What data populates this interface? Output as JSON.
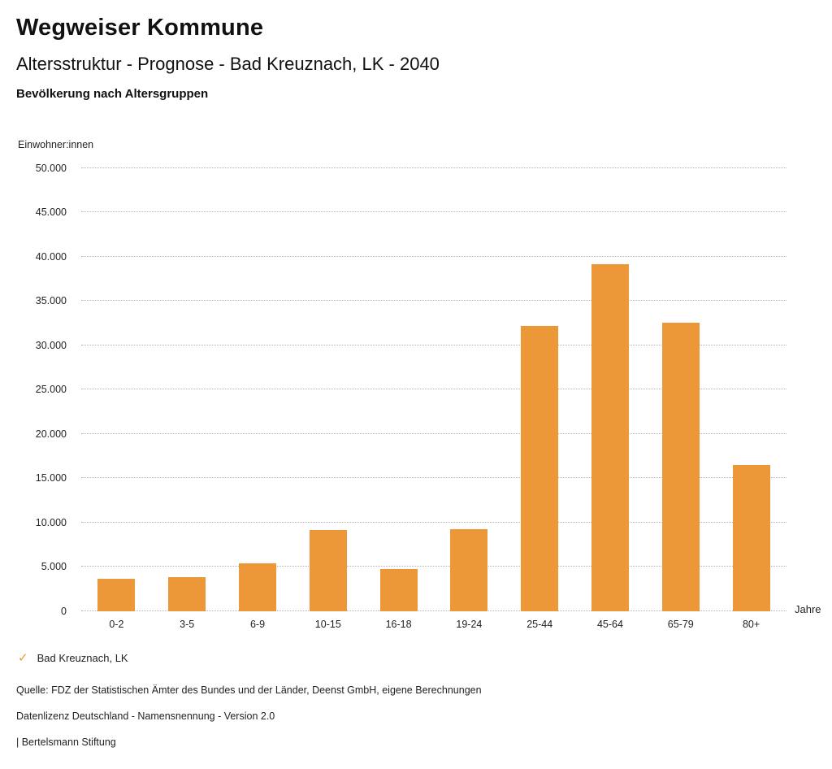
{
  "header": {
    "title": "Wegweiser Kommune",
    "subtitle": "Altersstruktur - Prognose - Bad Kreuznach, LK - 2040",
    "chart_title": "Bevölkerung nach Altersgruppen"
  },
  "chart_data": {
    "type": "bar",
    "title": "Bevölkerung nach Altersgruppen",
    "ylabel": "Einwohner:innen",
    "xlabel": "Jahre",
    "categories": [
      "0-2",
      "3-5",
      "6-9",
      "10-15",
      "16-18",
      "19-24",
      "25-44",
      "45-64",
      "65-79",
      "80+"
    ],
    "series": [
      {
        "name": "Bad Kreuznach, LK",
        "values": [
          3600,
          3800,
          5400,
          9100,
          4700,
          9250,
          32200,
          39100,
          32500,
          16500
        ]
      }
    ],
    "ylim": [
      0,
      50000
    ],
    "ytick_step": 5000,
    "ytick_labels": [
      "0",
      "5.000",
      "10.000",
      "15.000",
      "20.000",
      "25.000",
      "30.000",
      "35.000",
      "40.000",
      "45.000",
      "50.000"
    ],
    "grid": "horizontal-dotted",
    "legend_position": "bottom-left",
    "bar_color": "#EC9838"
  },
  "legend": {
    "marker": "check-icon",
    "check_glyph": "✓",
    "label": "Bad Kreuznach, LK",
    "color": "#EC9838"
  },
  "footer": {
    "source": "Quelle: FDZ der Statistischen Ämter des Bundes und der Länder, Deenst GmbH, eigene Berechnungen",
    "license": "Datenlizenz Deutschland - Namensnennung - Version 2.0",
    "attribution": "| Bertelsmann Stiftung"
  }
}
